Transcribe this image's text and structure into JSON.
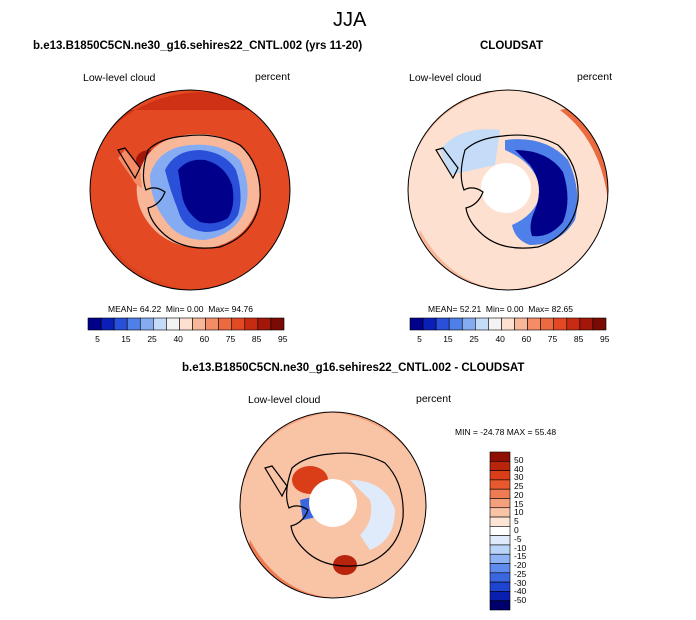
{
  "page": {
    "title": "JJA",
    "left_title": "b.e13.B1850C5CN.ne30_g16.sehires22_CNTL.002 (yrs 11-20)",
    "right_title": "CLOUDSAT",
    "bottom_title": "b.e13.B1850C5CN.ne30_g16.sehires22_CNTL.002 - CLOUDSAT"
  },
  "colors": {
    "abs_scale": [
      "#00008b",
      "#0a1fb8",
      "#2a4fd8",
      "#4f7fe8",
      "#85acf2",
      "#c4dcf8",
      "#f3f3f3",
      "#fde0cf",
      "#f9b79a",
      "#f48c66",
      "#ec6a40",
      "#e34a24",
      "#c92b12",
      "#a3170a",
      "#7a0a04"
    ],
    "diff_scale": [
      "#00006a",
      "#0a1fb0",
      "#1f44d0",
      "#3a66e0",
      "#5f8cec",
      "#8eb2f4",
      "#bad3f8",
      "#dfebfb",
      "#ffffff",
      "#fde4d4",
      "#f9c3a6",
      "#f5a07c",
      "#ef7b52",
      "#e8592e",
      "#d93e18",
      "#b8240c",
      "#8e1004"
    ]
  },
  "chart_data": [
    {
      "type": "heatmap",
      "projection": "south-polar-stereographic",
      "name": "model",
      "variable": "Low-level cloud",
      "units": "percent",
      "mean": "64.22",
      "min": "0.00",
      "max": "94.76",
      "mean_label": "MEAN=",
      "min_label": "Min=",
      "max_label": "Max=",
      "colorbar_labels": [
        "5",
        "15",
        "25",
        "40",
        "60",
        "75",
        "85",
        "95"
      ]
    },
    {
      "type": "heatmap",
      "projection": "south-polar-stereographic",
      "name": "cloudsat",
      "variable": "Low-level cloud",
      "units": "percent",
      "mean": "52.21",
      "min": "0.00",
      "max": "82.65",
      "mean_label": "MEAN=",
      "min_label": "Min=",
      "max_label": "Max=",
      "colorbar_labels": [
        "5",
        "15",
        "25",
        "40",
        "60",
        "75",
        "85",
        "95"
      ]
    },
    {
      "type": "heatmap",
      "projection": "south-polar-stereographic",
      "name": "difference",
      "variable": "Low-level cloud",
      "units": "percent",
      "min_max_text": "MIN = -24.78 MAX = 55.48",
      "colorbar_labels": [
        "50",
        "40",
        "30",
        "25",
        "20",
        "15",
        "10",
        "5",
        "0",
        "-5",
        "-10",
        "-15",
        "-20",
        "-25",
        "-30",
        "-40",
        "-50"
      ]
    }
  ]
}
